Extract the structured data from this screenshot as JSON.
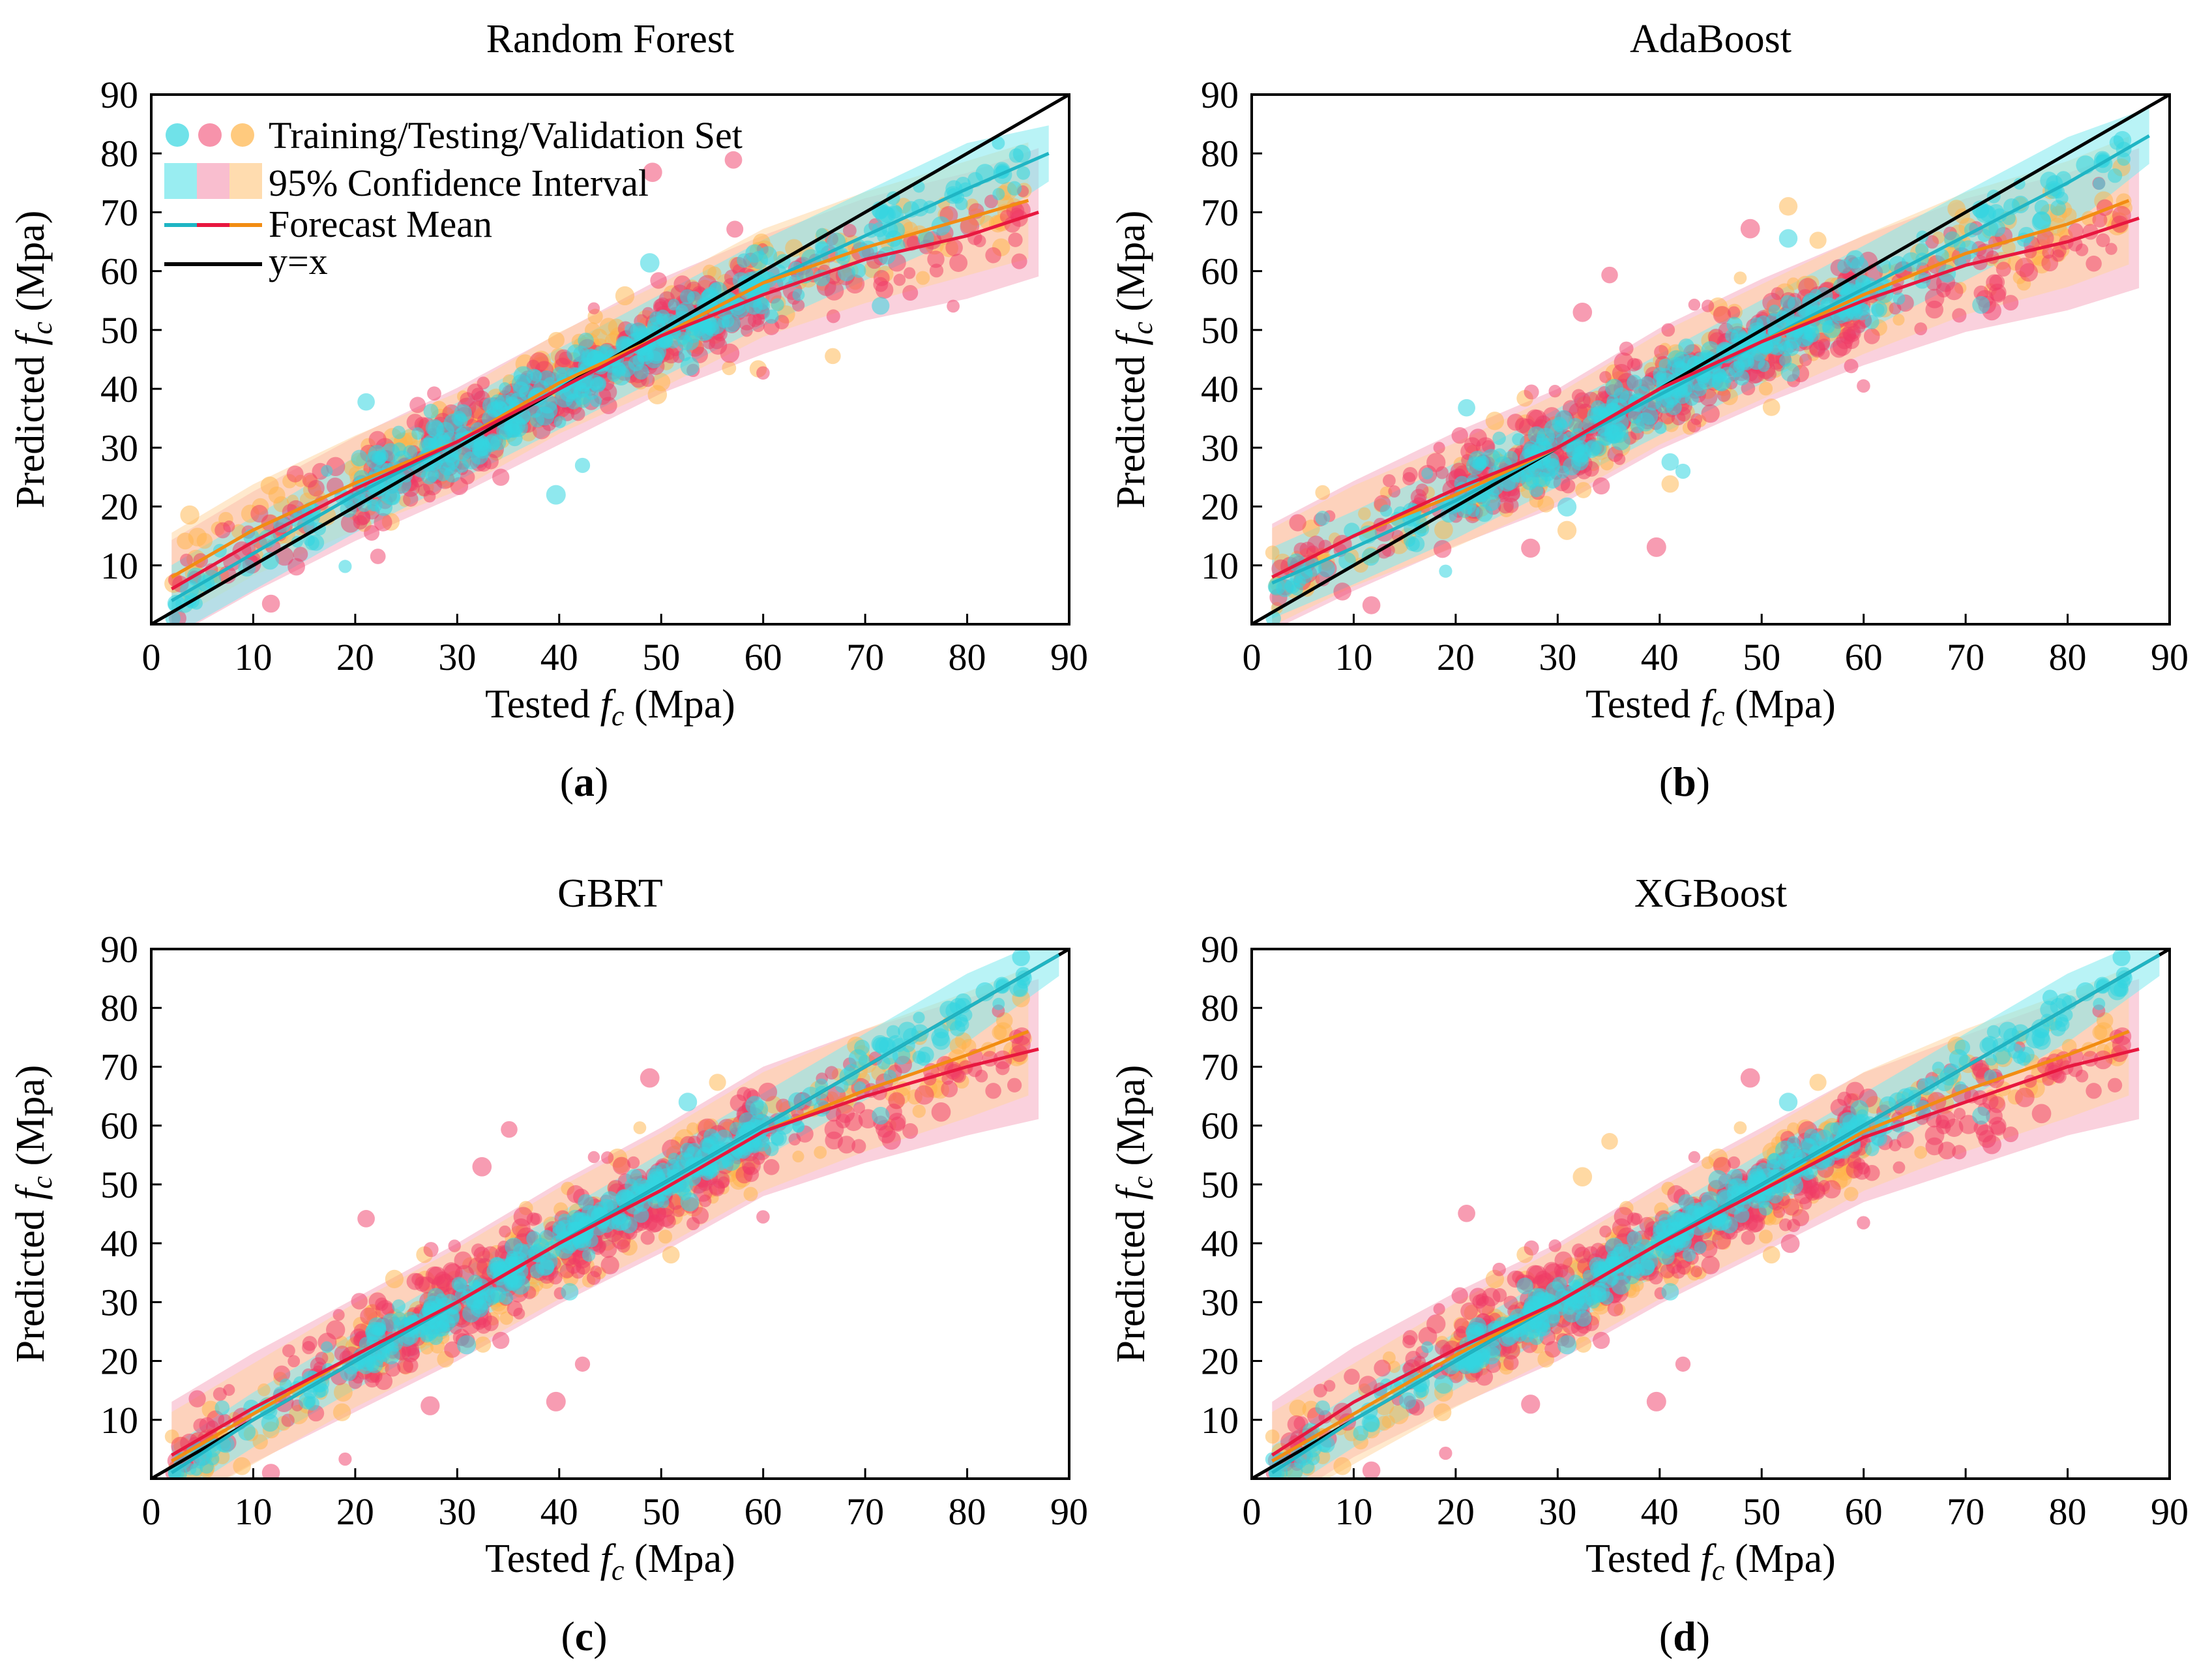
{
  "figure": {
    "axis_label_tested": "Tested",
    "axis_label_predicted": "Predicted",
    "axis_symbol": "f",
    "axis_subscript": "c",
    "axis_unit": "(Mpa)"
  },
  "legend": {
    "scatter_label": "Training/Testing/Validation Set",
    "interval_label": "95% Confidence Interval",
    "mean_label": "Forecast Mean",
    "identity_label": "y=x"
  },
  "colors": {
    "training": "#33d6e0",
    "testing": "#f03a66",
    "validation": "#ffb347",
    "band_training": "#7fe9ee",
    "band_testing": "#f6a3bb",
    "band_validation": "#ffd39b",
    "mean_training": "#1fb5c4",
    "mean_testing": "#e8173f",
    "mean_validation": "#f28c12",
    "identity": "#000000"
  },
  "chart_data": [
    {
      "type": "scatter",
      "title": "Random Forest",
      "panel_label": "a",
      "xlim": [
        0,
        90
      ],
      "ylim": [
        0,
        90
      ],
      "xticks": [
        0,
        10,
        20,
        30,
        40,
        50,
        60,
        70,
        80,
        90
      ],
      "yticks": [
        10,
        20,
        30,
        40,
        50,
        60,
        70,
        80,
        90
      ],
      "series": [
        {
          "role": "training",
          "mean": [
            [
              2,
              4
            ],
            [
              10,
              12
            ],
            [
              20,
              22
            ],
            [
              30,
              31
            ],
            [
              40,
              40
            ],
            [
              50,
              49
            ],
            [
              60,
              58
            ],
            [
              70,
              66
            ],
            [
              80,
              74
            ],
            [
              88,
              80
            ]
          ],
          "band_halfwidth": 8
        },
        {
          "role": "testing",
          "mean": [
            [
              2,
              6
            ],
            [
              10,
              14
            ],
            [
              20,
              23
            ],
            [
              30,
              31
            ],
            [
              40,
              40
            ],
            [
              50,
              49
            ],
            [
              60,
              56
            ],
            [
              70,
              62
            ],
            [
              80,
              66
            ],
            [
              87,
              70
            ]
          ],
          "band_halfwidth": 11
        },
        {
          "role": "validation",
          "mean": [
            [
              2,
              8
            ],
            [
              10,
              16
            ],
            [
              20,
              24
            ],
            [
              30,
              31
            ],
            [
              40,
              41
            ],
            [
              50,
              49
            ],
            [
              60,
              58
            ],
            [
              70,
              64
            ],
            [
              80,
              69
            ],
            [
              86,
              72
            ]
          ],
          "band_halfwidth": 10
        }
      ]
    },
    {
      "type": "scatter",
      "title": "AdaBoost",
      "panel_label": "b",
      "xlim": [
        0,
        90
      ],
      "ylim": [
        0,
        90
      ],
      "xticks": [
        0,
        10,
        20,
        30,
        40,
        50,
        60,
        70,
        80,
        90
      ],
      "yticks": [
        10,
        20,
        30,
        40,
        50,
        60,
        70,
        80,
        90
      ],
      "series": [
        {
          "role": "training",
          "mean": [
            [
              2,
              7
            ],
            [
              10,
              13
            ],
            [
              20,
              21
            ],
            [
              30,
              30
            ],
            [
              40,
              39
            ],
            [
              50,
              48
            ],
            [
              60,
              57
            ],
            [
              70,
              66
            ],
            [
              80,
              75
            ],
            [
              88,
              83
            ]
          ],
          "band_halfwidth": 8
        },
        {
          "role": "testing",
          "mean": [
            [
              2,
              8
            ],
            [
              10,
              15
            ],
            [
              20,
              23
            ],
            [
              30,
              30
            ],
            [
              40,
              40
            ],
            [
              50,
              48
            ],
            [
              60,
              55
            ],
            [
              70,
              61
            ],
            [
              80,
              65
            ],
            [
              87,
              69
            ]
          ],
          "band_halfwidth": 12
        },
        {
          "role": "validation",
          "mean": [
            [
              2,
              8
            ],
            [
              10,
              15
            ],
            [
              20,
              22
            ],
            [
              30,
              30
            ],
            [
              40,
              40
            ],
            [
              50,
              48
            ],
            [
              60,
              56
            ],
            [
              70,
              63
            ],
            [
              80,
              68
            ],
            [
              86,
              72
            ]
          ],
          "band_halfwidth": 11
        }
      ]
    },
    {
      "type": "scatter",
      "title": "GBRT",
      "panel_label": "c",
      "xlim": [
        0,
        90
      ],
      "ylim": [
        0,
        90
      ],
      "xticks": [
        0,
        10,
        20,
        30,
        40,
        50,
        60,
        70,
        80,
        90
      ],
      "yticks": [
        10,
        20,
        30,
        40,
        50,
        60,
        70,
        80,
        90
      ],
      "series": [
        {
          "role": "training",
          "mean": [
            [
              2,
              1
            ],
            [
              10,
              10
            ],
            [
              20,
              20
            ],
            [
              30,
              30
            ],
            [
              40,
              40
            ],
            [
              50,
              50
            ],
            [
              60,
              60
            ],
            [
              70,
              70
            ],
            [
              80,
              80
            ],
            [
              89,
              89
            ]
          ],
          "band_halfwidth": 6
        },
        {
          "role": "testing",
          "mean": [
            [
              2,
              4
            ],
            [
              10,
              12
            ],
            [
              20,
              21
            ],
            [
              30,
              30
            ],
            [
              40,
              40
            ],
            [
              50,
              49
            ],
            [
              60,
              59
            ],
            [
              70,
              65
            ],
            [
              80,
              70
            ],
            [
              87,
              73
            ]
          ],
          "band_halfwidth": 12
        },
        {
          "role": "validation",
          "mean": [
            [
              2,
              3
            ],
            [
              10,
              11
            ],
            [
              20,
              21
            ],
            [
              30,
              30
            ],
            [
              40,
              40
            ],
            [
              50,
              49
            ],
            [
              60,
              59
            ],
            [
              70,
              66
            ],
            [
              80,
              72
            ],
            [
              86,
              76
            ]
          ],
          "band_halfwidth": 11
        }
      ]
    },
    {
      "type": "scatter",
      "title": "XGBoost",
      "panel_label": "d",
      "xlim": [
        0,
        90
      ],
      "ylim": [
        0,
        90
      ],
      "xticks": [
        0,
        10,
        20,
        30,
        40,
        50,
        60,
        70,
        80,
        90
      ],
      "yticks": [
        10,
        20,
        30,
        40,
        50,
        60,
        70,
        80,
        90
      ],
      "series": [
        {
          "role": "training",
          "mean": [
            [
              2,
              1
            ],
            [
              10,
              10
            ],
            [
              20,
              20
            ],
            [
              30,
              30
            ],
            [
              40,
              40
            ],
            [
              50,
              50
            ],
            [
              60,
              60
            ],
            [
              70,
              70
            ],
            [
              80,
              80
            ],
            [
              89,
              89
            ]
          ],
          "band_halfwidth": 6
        },
        {
          "role": "testing",
          "mean": [
            [
              2,
              4
            ],
            [
              10,
              13
            ],
            [
              20,
              22
            ],
            [
              30,
              30
            ],
            [
              40,
              40
            ],
            [
              50,
              49
            ],
            [
              60,
              58
            ],
            [
              70,
              64
            ],
            [
              80,
              70
            ],
            [
              87,
              73
            ]
          ],
          "band_halfwidth": 12
        },
        {
          "role": "validation",
          "mean": [
            [
              2,
              3
            ],
            [
              10,
              11
            ],
            [
              20,
              21
            ],
            [
              30,
              30
            ],
            [
              40,
              40
            ],
            [
              50,
              49
            ],
            [
              60,
              59
            ],
            [
              70,
              66
            ],
            [
              80,
              72
            ],
            [
              86,
              76
            ]
          ],
          "band_halfwidth": 11
        }
      ]
    }
  ]
}
